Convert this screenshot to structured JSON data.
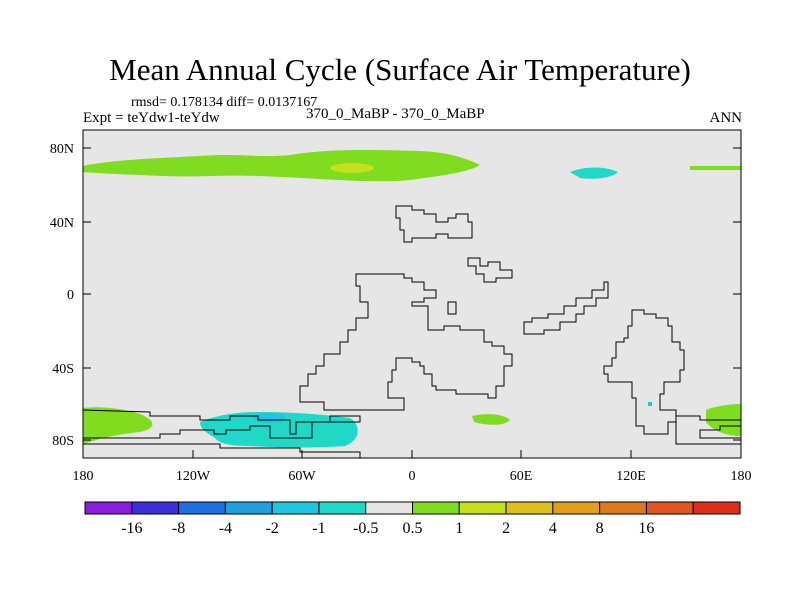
{
  "title": "Mean Annual Cycle (Surface Air Temperature)",
  "stats": "rmsd= 0.178134 diff= 0.0137167",
  "experiment": "Expt = teYdw1-teYdw",
  "case": "370_0_MaBP - 370_0_MaBP",
  "season": "ANN",
  "lat_labels": [
    "80N",
    "40N",
    "0",
    "40S",
    "80S"
  ],
  "lon_labels": [
    "180",
    "120W",
    "60W",
    "0",
    "60E",
    "120E",
    "180"
  ],
  "legend": {
    "colors": [
      "#8a1ee0",
      "#3a2fd8",
      "#1f6fe0",
      "#1f9fe0",
      "#20c6e0",
      "#20d8c8",
      "#e6e6e6",
      "#7fdc1e",
      "#c6e01e",
      "#e0c01e",
      "#e0a01e",
      "#e07a1e",
      "#e0561e",
      "#e02e1e"
    ],
    "labels": [
      "-16",
      "-8",
      "-4",
      "-2",
      "-1",
      "-0.5",
      "0.5",
      "1",
      "2",
      "4",
      "8",
      "16"
    ]
  },
  "colors": {
    "background": "#e6e6e6",
    "positive_1": "#7fdc1e",
    "positive_2": "#c6e01e",
    "negative_1": "#20d8c8",
    "negative_2": "#20c6e0"
  }
}
